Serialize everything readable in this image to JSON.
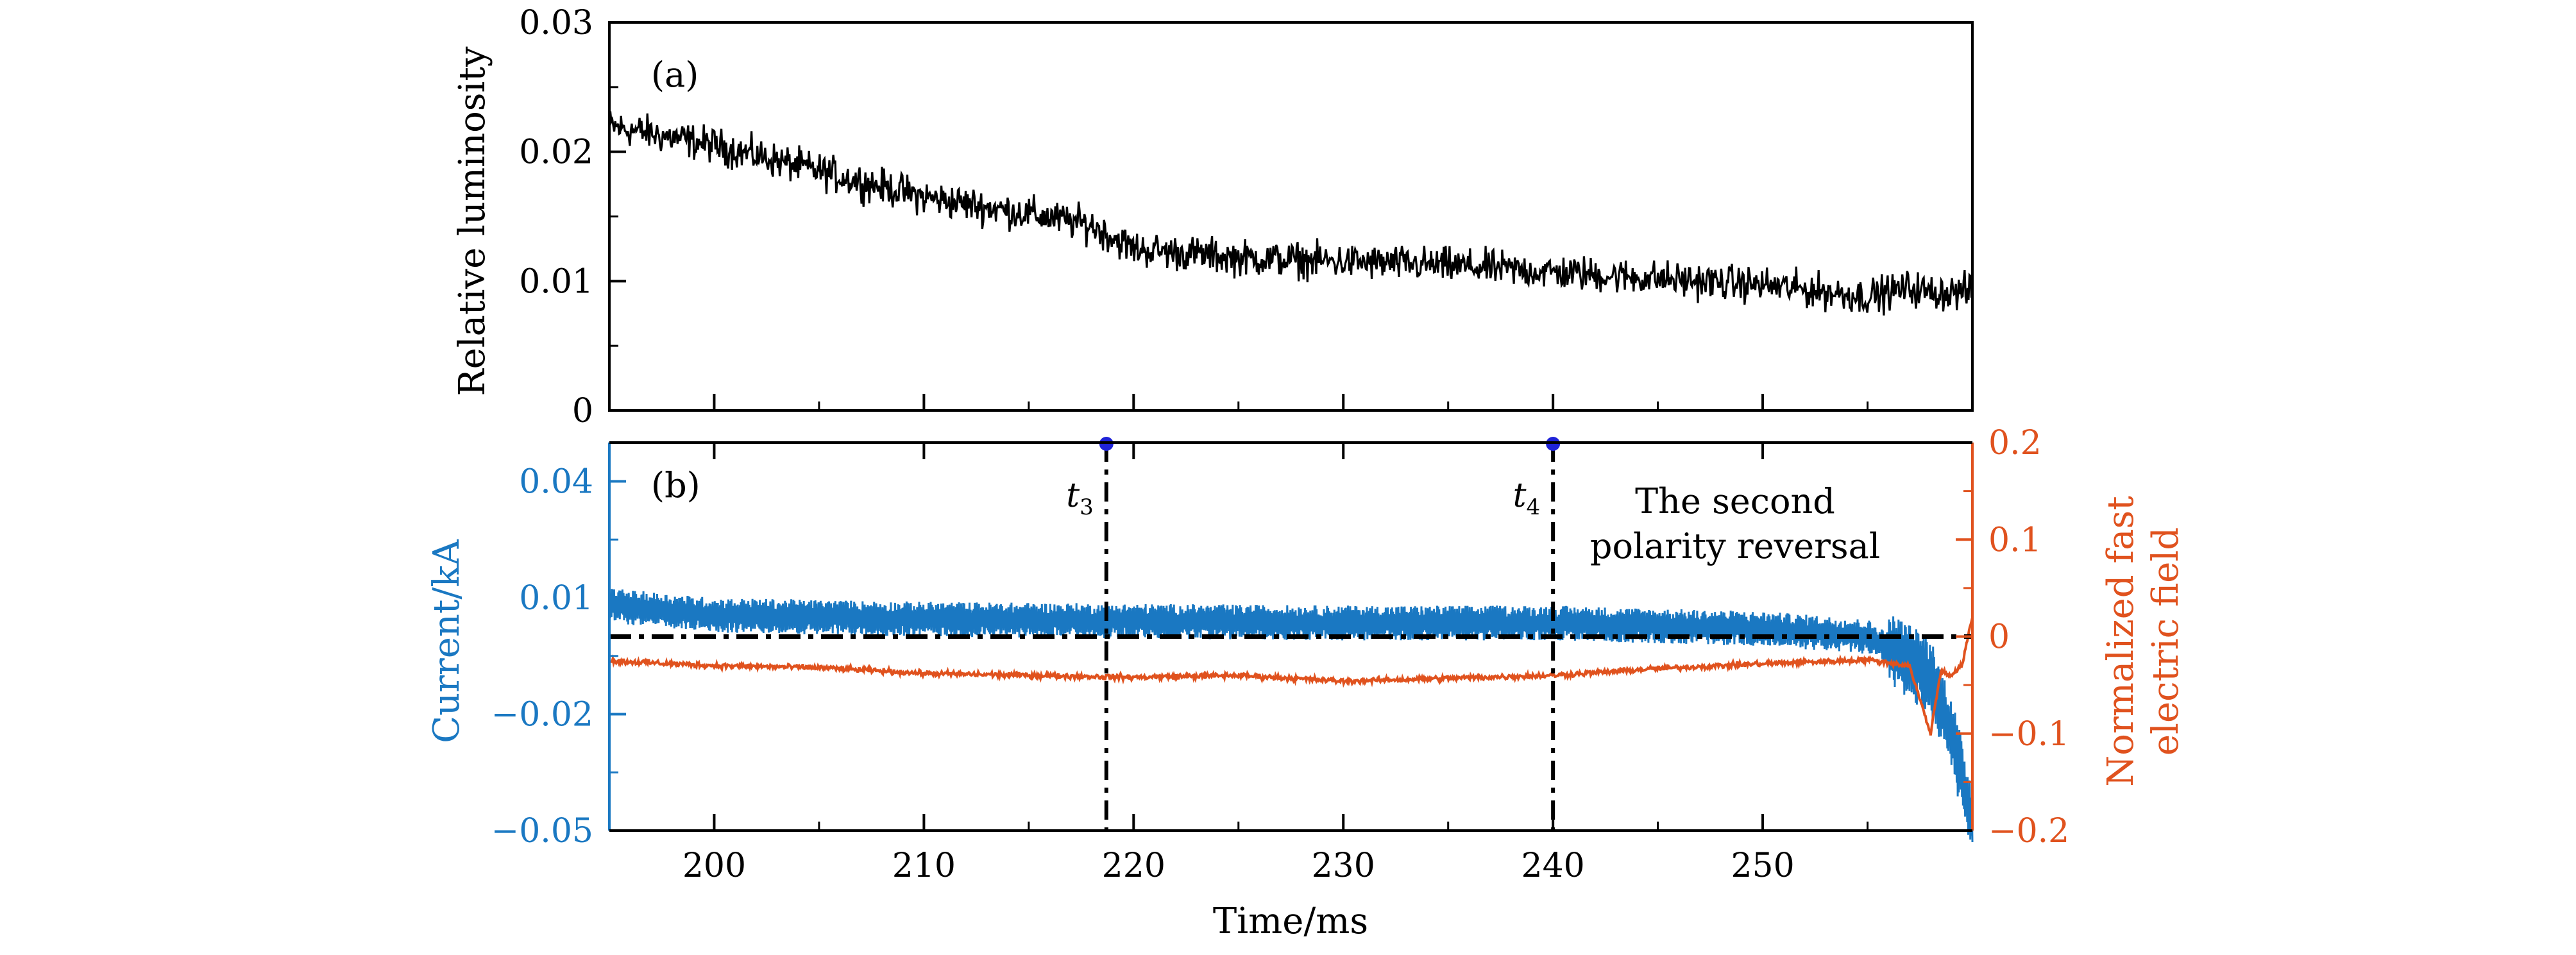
{
  "chart_data": [
    {
      "type": "line",
      "panel_label": "(a)",
      "ylabel": "Relative luminosity",
      "xlim": [
        195,
        260
      ],
      "ylim": [
        0,
        0.03
      ],
      "yticks": [
        "0",
        "0.01",
        "0.02",
        "0.03"
      ],
      "xticks": [
        200,
        210,
        220,
        230,
        240,
        250
      ],
      "series": [
        {
          "color": "#000000",
          "points": [
            [
              195,
              0.022
            ],
            [
              200,
              0.0205
            ],
            [
              205,
              0.0185
            ],
            [
              210,
              0.0165
            ],
            [
              215,
              0.0152
            ],
            [
              218,
              0.0143
            ],
            [
              220,
              0.0125
            ],
            [
              225,
              0.0118
            ],
            [
              230,
              0.0115
            ],
            [
              235,
              0.0112
            ],
            [
              240,
              0.0107
            ],
            [
              245,
              0.0102
            ],
            [
              250,
              0.0097
            ],
            [
              255,
              0.0088
            ],
            [
              257,
              0.0095
            ],
            [
              258,
              0.0091
            ],
            [
              260,
              0.0092
            ]
          ],
          "noise": 0.0015
        }
      ]
    },
    {
      "type": "line",
      "panel_label": "(b)",
      "xlabel": "Time/ms",
      "xlim": [
        195,
        260
      ],
      "xticks": [
        "200",
        "210",
        "220",
        "230",
        "240",
        "250"
      ],
      "left_axis": {
        "label": "Current/kA",
        "color": "#1a78c2",
        "ylim": [
          -0.05,
          0.05
        ],
        "ticks": [
          "0.04",
          "0.01",
          "−0.02",
          "−0.05"
        ],
        "tick_values": [
          0.04,
          0.01,
          -0.02,
          -0.05
        ]
      },
      "right_axis": {
        "label_line1": "Normalized fast",
        "label_line2": "electric field",
        "color": "#e0521e",
        "ylim": [
          -0.2,
          0.2
        ],
        "ticks": [
          "0.2",
          "0.1",
          "0",
          "−0.1",
          "−0.2"
        ],
        "tick_values": [
          0.2,
          0.1,
          0,
          -0.1,
          -0.2
        ]
      },
      "series": [
        {
          "axis": "left",
          "color": "#1a78c2",
          "points": [
            [
              195,
              0.008
            ],
            [
              200,
              0.0055
            ],
            [
              210,
              0.0045
            ],
            [
              220,
              0.004
            ],
            [
              230,
              0.0035
            ],
            [
              240,
              0.0035
            ],
            [
              250,
              0.002
            ],
            [
              255,
              0.0
            ],
            [
              258,
              -0.01
            ],
            [
              259,
              -0.025
            ],
            [
              260,
              -0.048
            ]
          ],
          "noise": 0.0045
        },
        {
          "axis": "right",
          "color": "#e0521e",
          "points": [
            [
              195,
              -0.025
            ],
            [
              200,
              -0.03
            ],
            [
              205,
              -0.032
            ],
            [
              210,
              -0.038
            ],
            [
              215,
              -0.04
            ],
            [
              220,
              -0.042
            ],
            [
              225,
              -0.04
            ],
            [
              230,
              -0.046
            ],
            [
              235,
              -0.043
            ],
            [
              240,
              -0.04
            ],
            [
              245,
              -0.033
            ],
            [
              250,
              -0.028
            ],
            [
              255,
              -0.024
            ],
            [
              257,
              -0.03
            ],
            [
              258,
              -0.1
            ],
            [
              258.5,
              -0.035
            ],
            [
              259,
              -0.04
            ],
            [
              259.5,
              -0.03
            ],
            [
              260,
              0.02
            ]
          ],
          "noise": 0.003
        }
      ],
      "zero_line_value_right_axis": 0,
      "markers": [
        {
          "label": "t",
          "subscript": "3",
          "time": 218.7
        },
        {
          "label": "t",
          "subscript": "4",
          "time": 240.0
        }
      ],
      "annotation_line1": "The second",
      "annotation_line2": "polarity reversal"
    }
  ]
}
